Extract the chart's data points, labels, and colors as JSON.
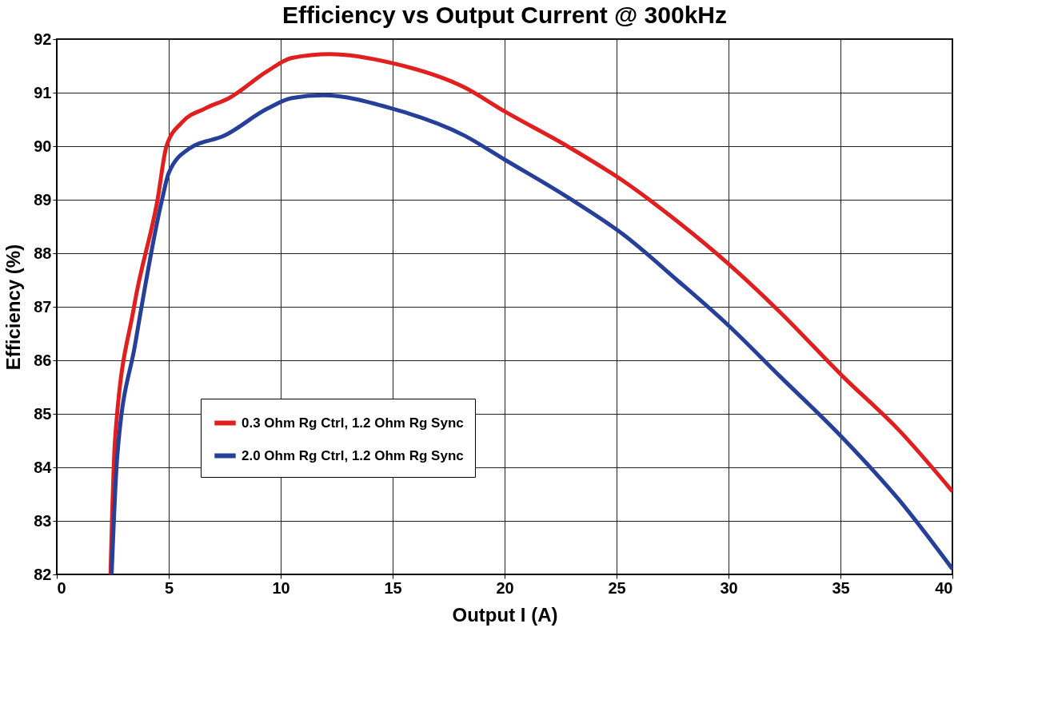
{
  "chart_data": {
    "type": "line",
    "title": "Efficiency vs Output Current @ 300kHz",
    "xlabel": "Output I (A)",
    "ylabel": "Efficiency (%)",
    "xlim": [
      0,
      40
    ],
    "xticks": [
      0,
      5,
      10,
      15,
      20,
      25,
      30,
      35,
      40
    ],
    "ylim": [
      82,
      92
    ],
    "yticks": [
      82,
      83,
      84,
      85,
      86,
      87,
      88,
      89,
      90,
      91,
      92
    ],
    "grid": true,
    "legend": "bottom left",
    "line_style": "solid",
    "marker": "none",
    "series": [
      {
        "name": "0.3 Ohm Rg Ctrl, 1.2 Ohm Rg Sync",
        "color": "#e0201f",
        "x": [
          2.4,
          2.6,
          3.45,
          4.5,
          4.9,
          5.6,
          6.6,
          7.7,
          9.4,
          10.5,
          12.2,
          15,
          18.2,
          20,
          22.8,
          25.3,
          27.7,
          30,
          32.3,
          35.1,
          37.6,
          40
        ],
        "values": [
          82,
          84.5,
          87,
          89,
          90,
          90.45,
          90.7,
          90.9,
          91.4,
          91.65,
          91.72,
          91.55,
          91.1,
          90.65,
          90.0,
          89.35,
          88.6,
          87.8,
          86.9,
          85.7,
          84.7,
          83.55
        ]
      },
      {
        "name": "2.0 Ohm Rg Ctrl, 1.2 Ohm Rg Sync",
        "color": "#26409a",
        "x": [
          2.45,
          2.7,
          3.5,
          4.7,
          5.0,
          5.9,
          7.5,
          9.4,
          10.5,
          11.9,
          15,
          18.2,
          20,
          22.8,
          25.3,
          27.7,
          30,
          32.3,
          35.1,
          37.6,
          40
        ],
        "values": [
          82,
          84.2,
          86.3,
          89.0,
          89.5,
          89.95,
          90.2,
          90.7,
          90.9,
          90.95,
          90.7,
          90.2,
          89.75,
          89.05,
          88.35,
          87.5,
          86.65,
          85.7,
          84.55,
          83.4,
          82.1
        ]
      }
    ]
  }
}
